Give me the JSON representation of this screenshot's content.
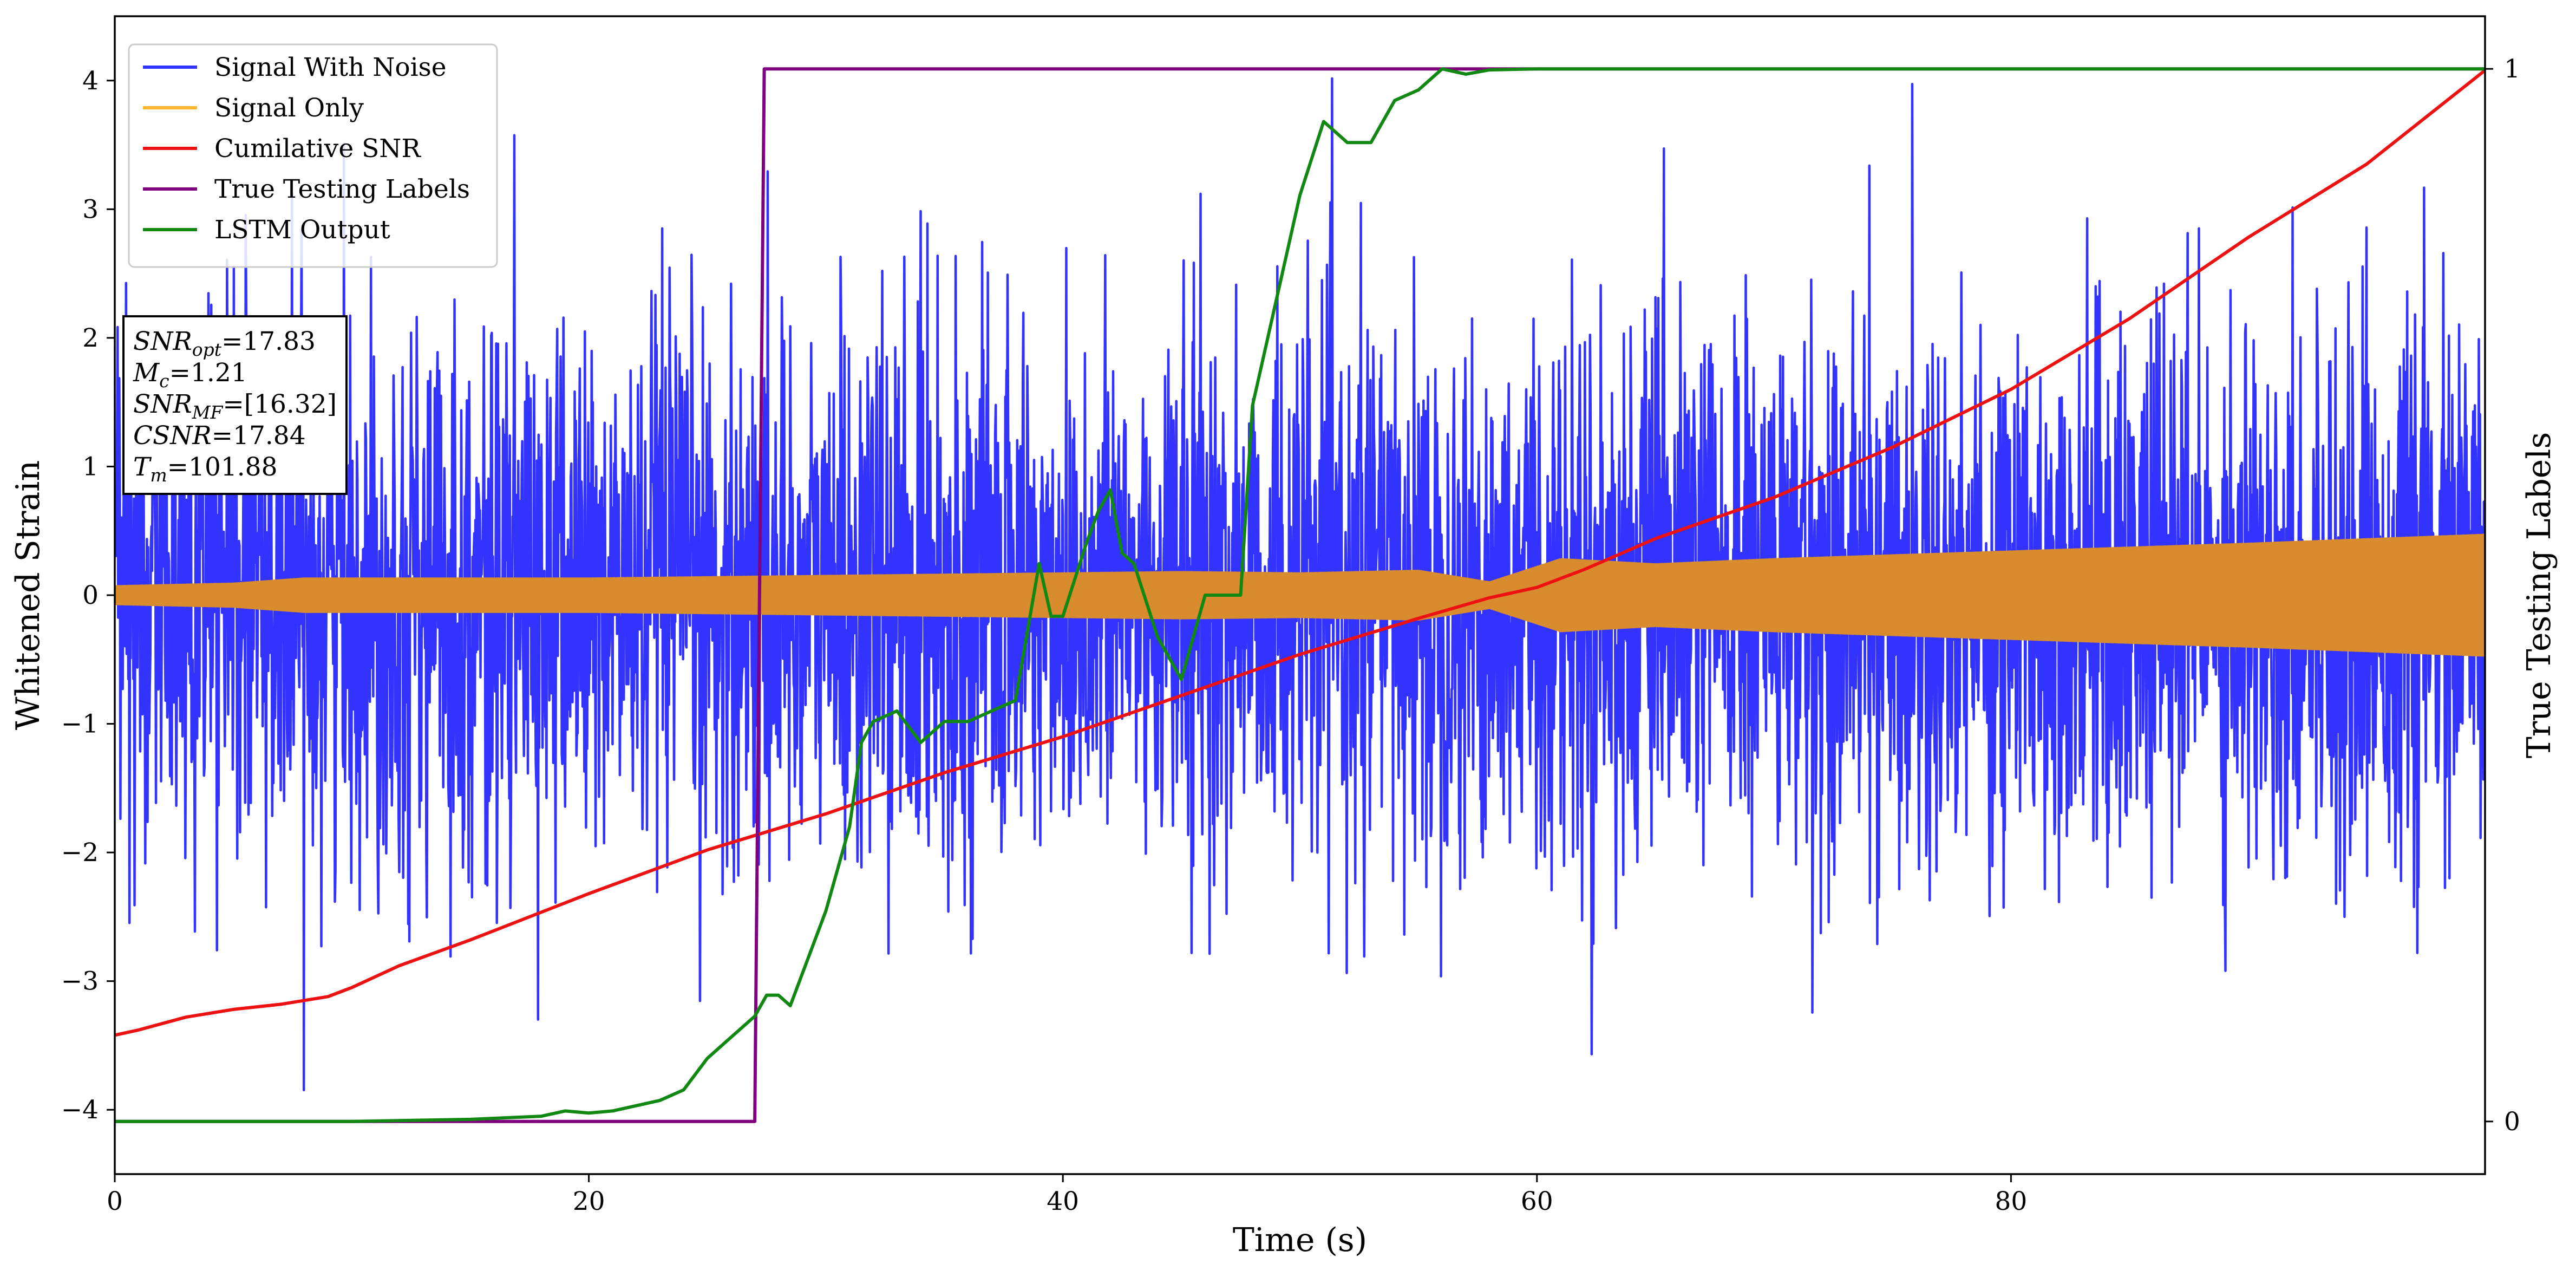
{
  "chart_data": {
    "type": "line",
    "xlabel": "Time (s)",
    "ylabel_left": "Whitened Strain",
    "ylabel_right": "True Testing Labels",
    "xlim": [
      0,
      100
    ],
    "ylim_left": [
      -4.5,
      4.5
    ],
    "ylim_right": [
      -0.05,
      1.05
    ],
    "grid": false,
    "legend_position": "top-left",
    "x_ticks": [
      0,
      20,
      40,
      60,
      80
    ],
    "y_ticks_left": [
      -4,
      -3,
      -2,
      -1,
      0,
      1,
      2,
      3,
      4
    ],
    "y_ticks_right": [
      0,
      1
    ],
    "annotation": [
      {
        "label": "SNR",
        "sub": "opt",
        "value": "=17.83"
      },
      {
        "label": "M",
        "sub": "c",
        "value": "=1.21"
      },
      {
        "label": "SNR",
        "sub": "MF",
        "value": "=[16.32]"
      },
      {
        "label": "CSNR",
        "sub": "",
        "value": "=17.84"
      },
      {
        "label": "T",
        "sub": "m",
        "value": "=101.88"
      }
    ],
    "series": [
      {
        "name": "Signal With Noise",
        "color": "#3333ff",
        "axis": "left",
        "kind": "noise",
        "noise_std": 1.05,
        "min": -4.08,
        "max": 4.1
      },
      {
        "name": "Signal Only",
        "color": "#d88c2e",
        "legend_color": "#ffb732",
        "axis": "left",
        "kind": "envelope",
        "x": [
          0,
          5,
          8,
          12,
          20,
          30,
          40,
          45,
          50,
          55,
          58,
          61,
          65,
          70,
          80,
          90,
          100
        ],
        "amp": [
          0.07,
          0.09,
          0.13,
          0.13,
          0.13,
          0.15,
          0.17,
          0.18,
          0.17,
          0.19,
          0.1,
          0.28,
          0.24,
          0.28,
          0.34,
          0.4,
          0.47
        ]
      },
      {
        "name": "Cumilative SNR",
        "color": "#ee1111",
        "axis": "left",
        "x": [
          0,
          1,
          3,
          5,
          7,
          9,
          10,
          12,
          15,
          20,
          25,
          30,
          35,
          40,
          45,
          50,
          55,
          58,
          60,
          62,
          65,
          70,
          75,
          80,
          85,
          90,
          95,
          100
        ],
        "y": [
          -3.42,
          -3.38,
          -3.28,
          -3.22,
          -3.18,
          -3.12,
          -3.05,
          -2.88,
          -2.68,
          -2.32,
          -1.98,
          -1.7,
          -1.38,
          -1.1,
          -0.78,
          -0.46,
          -0.18,
          -0.02,
          0.06,
          0.2,
          0.44,
          0.76,
          1.15,
          1.6,
          2.15,
          2.78,
          3.35,
          4.08
        ]
      },
      {
        "name": "True Testing Labels",
        "color": "#800080",
        "axis": "right",
        "x": [
          0,
          27.0,
          27.4,
          100
        ],
        "y": [
          0,
          0,
          1,
          1
        ]
      },
      {
        "name": "LSTM Output",
        "color": "#118811",
        "axis": "right",
        "x": [
          0,
          10,
          15,
          18,
          19,
          20,
          21,
          22,
          23,
          24,
          25,
          26,
          27,
          27.5,
          28,
          28.5,
          29,
          30,
          30.5,
          31,
          31.5,
          32,
          33,
          34,
          35,
          36,
          37,
          38,
          39,
          39.5,
          40,
          41,
          41.5,
          42,
          42.5,
          43,
          44,
          45,
          46,
          47,
          47.5,
          48,
          49,
          50,
          51,
          52,
          53,
          54,
          55,
          56,
          57,
          58,
          60,
          62,
          65,
          70,
          75,
          100
        ],
        "y": [
          0,
          0,
          0.002,
          0.005,
          0.01,
          0.008,
          0.01,
          0.015,
          0.02,
          0.03,
          0.06,
          0.08,
          0.1,
          0.12,
          0.12,
          0.11,
          0.14,
          0.2,
          0.24,
          0.28,
          0.36,
          0.38,
          0.39,
          0.36,
          0.38,
          0.38,
          0.39,
          0.4,
          0.53,
          0.48,
          0.48,
          0.55,
          0.58,
          0.6,
          0.54,
          0.53,
          0.46,
          0.42,
          0.5,
          0.5,
          0.5,
          0.68,
          0.78,
          0.88,
          0.95,
          0.93,
          0.93,
          0.97,
          0.98,
          1.0,
          0.995,
          0.999,
          1.0,
          1.0,
          1.0,
          1.0,
          1.0,
          1.0
        ]
      }
    ]
  }
}
